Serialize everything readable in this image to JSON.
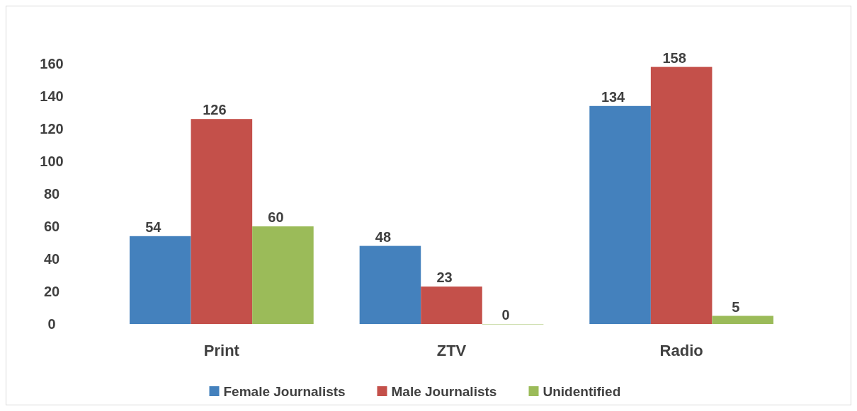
{
  "chart_data": {
    "type": "bar",
    "categories": [
      "Print",
      "ZTV",
      "Radio"
    ],
    "series": [
      {
        "name": "Female Journalists",
        "color": "#4481bd",
        "values": [
          54,
          48,
          134
        ]
      },
      {
        "name": "Male Journalists",
        "color": "#c4504a",
        "values": [
          126,
          23,
          158
        ]
      },
      {
        "name": "Unidentified",
        "color": "#9bbb59",
        "values": [
          60,
          0,
          5
        ]
      }
    ],
    "ylim": [
      0,
      160
    ],
    "yticks": [
      0,
      20,
      40,
      60,
      80,
      100,
      120,
      140,
      160
    ],
    "data_labels": true,
    "legend": "bottom",
    "grid": false
  }
}
